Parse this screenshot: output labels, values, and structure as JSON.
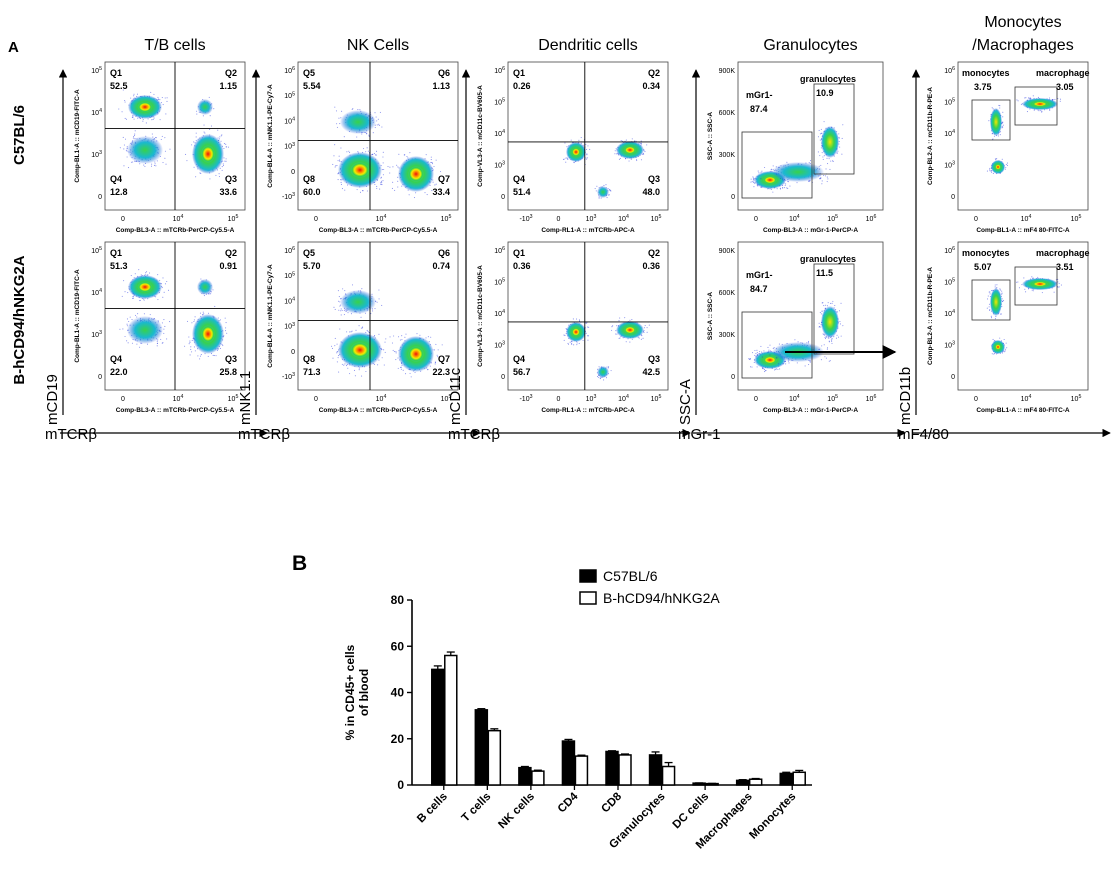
{
  "panel_a": {
    "letter": "A",
    "row_labels": [
      "C57BL/6",
      "B-hCD94/hNKG2A"
    ],
    "columns": [
      {
        "title": "T/B cells",
        "y_axis": "mCD19",
        "x_axis": "mTCRβ",
        "plot_ylabel": "Comp-BL1-A :: mCD19-FITC-A",
        "plot_xlabel": "Comp-BL3-A :: mTCRb-PerCP-Cy5.5-A",
        "ticks_y": [
          "10^5",
          "10^4",
          "10^3",
          "0"
        ],
        "ticks_x": [
          "0",
          "10^4",
          "10^5"
        ],
        "quadrant_names": [
          "Q1",
          "Q2",
          "Q4",
          "Q3"
        ],
        "rows": [
          [
            "52.5",
            "1.15",
            "12.8",
            "33.6"
          ],
          [
            "51.3",
            "0.91",
            "22.0",
            "25.8"
          ]
        ]
      },
      {
        "title": "NK Cells",
        "y_axis": "mNK1.1",
        "x_axis": "mTCRβ",
        "plot_ylabel": "Comp-BL4-A :: mNK1.1-PE-Cy7-A",
        "plot_xlabel": "Comp-BL3-A :: mTCRb-PerCP-Cy5.5-A",
        "ticks_y": [
          "10^6",
          "10^5",
          "10^4",
          "10^3",
          "0",
          "-10^3"
        ],
        "ticks_x": [
          "0",
          "10^4",
          "10^5"
        ],
        "quadrant_names": [
          "Q5",
          "Q6",
          "Q8",
          "Q7"
        ],
        "rows": [
          [
            "5.54",
            "1.13",
            "60.0",
            "33.4"
          ],
          [
            "5.70",
            "0.74",
            "71.3",
            "22.3"
          ]
        ]
      },
      {
        "title": "Dendritic cells",
        "y_axis": "mCD11c",
        "x_axis": "mTCRβ",
        "plot_ylabel": "Comp-VL3-A :: mCD11c-BV605-A",
        "plot_xlabel": "Comp-RL1-A :: mTCRb-APC-A",
        "ticks_y": [
          "10^6",
          "10^5",
          "10^4",
          "10^3",
          "0"
        ],
        "ticks_x": [
          "-10^3",
          "0",
          "10^3",
          "10^4",
          "10^5"
        ],
        "quadrant_names": [
          "Q1",
          "Q2",
          "Q4",
          "Q3"
        ],
        "rows": [
          [
            "0.26",
            "0.34",
            "51.4",
            "48.0"
          ],
          [
            "0.36",
            "0.36",
            "56.7",
            "42.5"
          ]
        ]
      },
      {
        "title": "Granulocytes",
        "y_axis": "SSC-A",
        "x_axis": "mGr-1",
        "plot_ylabel": "SSC-A :: SSC-A",
        "plot_xlabel": "Comp-BL3-A :: mGr-1-PerCP-A",
        "ticks_y": [
          "900K",
          "600K",
          "300K",
          "0"
        ],
        "ticks_x": [
          "0",
          "10^4",
          "10^5",
          "10^6"
        ],
        "gates": [
          "mGr1-",
          "granulocytes"
        ],
        "rows": [
          [
            "87.4",
            "10.9"
          ],
          [
            "84.7",
            "11.5"
          ]
        ]
      },
      {
        "title": "Monocytes\n/Macrophages",
        "y_axis": "mCD11b",
        "x_axis": "mF4/80",
        "plot_ylabel": "Comp-BL2-A :: mCD11b-R-PE-A",
        "plot_xlabel": "Comp-BL1-A :: mF4 80-FITC-A",
        "ticks_y": [
          "10^6",
          "10^5",
          "10^4",
          "10^3",
          "0"
        ],
        "ticks_x": [
          "0",
          "10^4",
          "10^5"
        ],
        "gates": [
          "monocytes",
          "macrophage"
        ],
        "rows": [
          [
            "3.75",
            "3.05"
          ],
          [
            "5.07",
            "3.51"
          ]
        ]
      }
    ]
  },
  "colors": {
    "dots": "#2233dd",
    "black_bar": "#000000",
    "white_bar": "#ffffff"
  },
  "chart_data": {
    "type": "bar",
    "panel_letter": "B",
    "ylabel": "% in CD45+ cells\nof blood",
    "ylim": [
      0,
      80
    ],
    "yticks": [
      0,
      20,
      40,
      60,
      80
    ],
    "legend_placement": "top-right",
    "categories": [
      "B cells",
      "T cells",
      "NK cells",
      "CD4",
      "CD8",
      "Granulocytes",
      "DC cells",
      "Macrophages",
      "Monocytes"
    ],
    "series": [
      {
        "name": "C57BL/6",
        "values": [
          50.0,
          32.5,
          7.5,
          19.0,
          14.5,
          13.0,
          0.8,
          2.0,
          5.0
        ],
        "errors": [
          1.5,
          0.5,
          0.5,
          0.7,
          0.3,
          1.3,
          0.1,
          0.3,
          0.5
        ]
      },
      {
        "name": "B-hCD94/hNKG2A",
        "values": [
          56.0,
          23.5,
          6.0,
          12.5,
          13.0,
          8.0,
          0.6,
          2.5,
          5.5
        ],
        "errors": [
          1.5,
          0.8,
          0.4,
          0.4,
          0.4,
          1.7,
          0.1,
          0.3,
          0.8
        ]
      }
    ]
  }
}
